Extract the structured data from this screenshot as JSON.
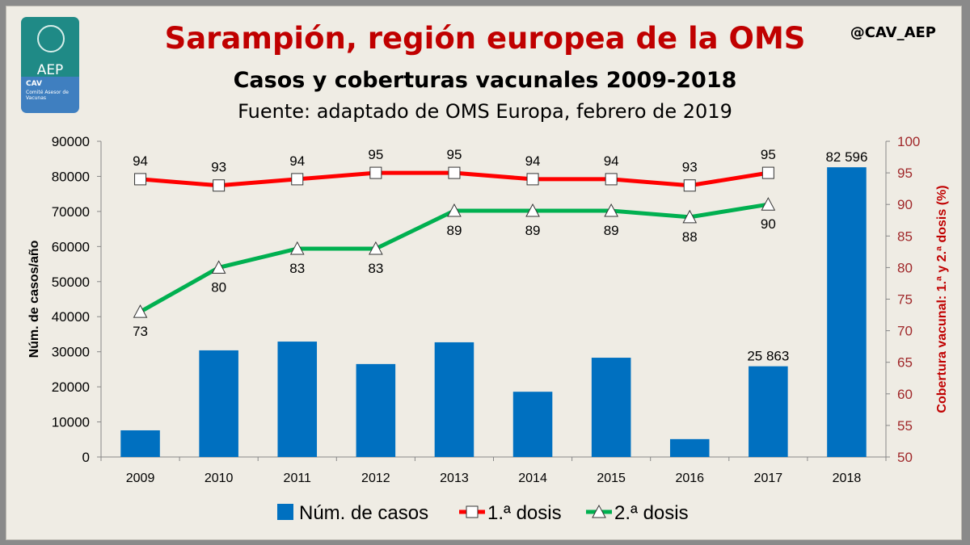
{
  "title": "Sarampión, región europea de la OMS",
  "subtitle": "Casos y coberturas vacunales 2009-2018",
  "source": "Fuente: adaptado de OMS Europa, febrero de 2019",
  "handle": "@CAV_AEP",
  "logo": {
    "org": "Asociación Española de Pediatría",
    "abbr": "AEP",
    "cav": "CAV",
    "committee": "Comité Asesor de Vacunas"
  },
  "chart_data": {
    "type": "bar+line",
    "categories": [
      "2009",
      "2010",
      "2011",
      "2012",
      "2013",
      "2014",
      "2015",
      "2016",
      "2017",
      "2018"
    ],
    "ylabel": "Núm. de casos/año",
    "y2label": "Cobertura vacunal: 1.ª y 2.ª dosis (%)",
    "ylim": [
      0,
      90000
    ],
    "y2lim": [
      50,
      100
    ],
    "yticks": [
      0,
      10000,
      20000,
      30000,
      40000,
      50000,
      60000,
      70000,
      80000,
      90000
    ],
    "y2ticks": [
      50,
      55,
      60,
      65,
      70,
      75,
      80,
      85,
      90,
      95,
      100
    ],
    "grid": false,
    "legend_position": "bottom",
    "series": [
      {
        "name": "Núm. de casos",
        "type": "bar",
        "axis": "left",
        "color": "#0070c0",
        "values": [
          7600,
          30400,
          32900,
          26500,
          32700,
          18600,
          28300,
          5100,
          25863,
          82596
        ],
        "data_labels": [
          null,
          null,
          null,
          null,
          null,
          null,
          null,
          null,
          "25 863",
          "82 596"
        ]
      },
      {
        "name": "1.ª dosis",
        "type": "line",
        "axis": "right",
        "color": "#ff0000",
        "marker": "square",
        "values": [
          94,
          93,
          94,
          95,
          95,
          94,
          94,
          93,
          95,
          null
        ]
      },
      {
        "name": "2.ª dosis",
        "type": "line",
        "axis": "right",
        "color": "#00b050",
        "marker": "triangle",
        "values": [
          73,
          80,
          83,
          83,
          89,
          89,
          89,
          88,
          90,
          null
        ]
      }
    ]
  }
}
